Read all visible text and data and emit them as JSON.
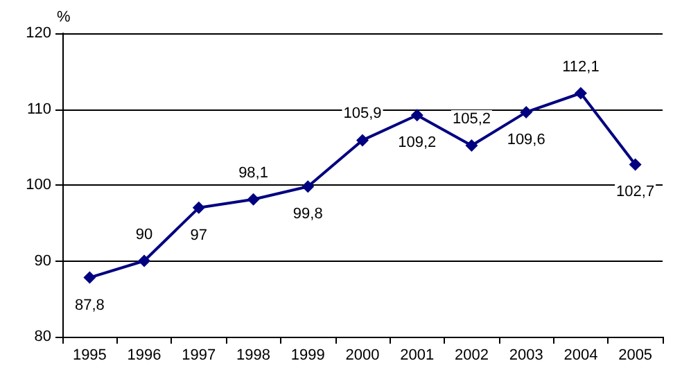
{
  "chart_data": {
    "type": "line",
    "ylabel": "%",
    "categories": [
      "1995",
      "1996",
      "1997",
      "1998",
      "1999",
      "2000",
      "2001",
      "2002",
      "2003",
      "2004",
      "2005"
    ],
    "series": [
      {
        "color": "#000080",
        "values": [
          87.8,
          90,
          97,
          98.1,
          99.8,
          105.9,
          109.2,
          105.2,
          109.6,
          112.1,
          102.7
        ],
        "value_labels": [
          "87,8",
          "90",
          "97",
          "98,1",
          "99,8",
          "105,9",
          "109,2",
          "105,2",
          "109,6",
          "112,1",
          "102,7"
        ]
      }
    ],
    "ylim": [
      80,
      120
    ],
    "yticks": [
      80,
      90,
      100,
      110,
      120
    ],
    "grid": "y",
    "marker": "diamond",
    "line_style": "solid"
  }
}
